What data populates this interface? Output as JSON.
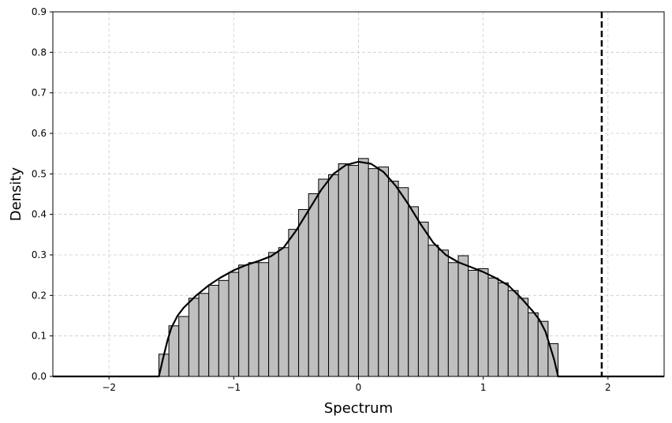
{
  "chart_data": {
    "type": "bar",
    "title": "",
    "xlabel": "Spectrum",
    "ylabel": "Density",
    "xlim": [
      -2.45,
      2.45
    ],
    "ylim": [
      0,
      0.9
    ],
    "xticks": [
      -2,
      -1,
      0,
      1,
      2
    ],
    "xtick_labels": [
      "−2",
      "−1",
      "0",
      "1",
      "2"
    ],
    "yticks": [
      0.0,
      0.1,
      0.2,
      0.3,
      0.4,
      0.5,
      0.6,
      0.7,
      0.8,
      0.9
    ],
    "ytick_labels": [
      "0.0",
      "0.1",
      "0.2",
      "0.3",
      "0.4",
      "0.5",
      "0.6",
      "0.7",
      "0.8",
      "0.9"
    ],
    "grid": true,
    "histogram": {
      "bin_start": -1.6,
      "bin_width": 0.08,
      "values": [
        0.055,
        0.125,
        0.148,
        0.193,
        0.205,
        0.225,
        0.237,
        0.257,
        0.275,
        0.281,
        0.281,
        0.306,
        0.318,
        0.363,
        0.412,
        0.451,
        0.487,
        0.498,
        0.525,
        0.521,
        0.538,
        0.513,
        0.517,
        0.482,
        0.466,
        0.419,
        0.381,
        0.324,
        0.312,
        0.281,
        0.298,
        0.262,
        0.266,
        0.243,
        0.231,
        0.212,
        0.193,
        0.157,
        0.136,
        0.081
      ],
      "fill": "#bfbfbf",
      "edge": "#000000"
    },
    "density_curve": {
      "x": [
        -2.45,
        -1.6,
        -1.57,
        -1.53,
        -1.5,
        -1.45,
        -1.4,
        -1.3,
        -1.2,
        -1.1,
        -1.0,
        -0.9,
        -0.8,
        -0.7,
        -0.6,
        -0.5,
        -0.4,
        -0.3,
        -0.2,
        -0.1,
        0.0,
        0.1,
        0.2,
        0.3,
        0.4,
        0.5,
        0.6,
        0.7,
        0.8,
        0.9,
        1.0,
        1.1,
        1.2,
        1.3,
        1.4,
        1.45,
        1.5,
        1.53,
        1.57,
        1.6,
        2.45
      ],
      "y": [
        0.0,
        0.0,
        0.04,
        0.09,
        0.12,
        0.15,
        0.17,
        0.2,
        0.225,
        0.245,
        0.262,
        0.275,
        0.285,
        0.297,
        0.318,
        0.36,
        0.41,
        0.46,
        0.5,
        0.522,
        0.53,
        0.525,
        0.505,
        0.47,
        0.425,
        0.375,
        0.33,
        0.3,
        0.282,
        0.27,
        0.258,
        0.243,
        0.225,
        0.195,
        0.16,
        0.14,
        0.11,
        0.08,
        0.04,
        0.0,
        0.0
      ],
      "color": "#000000"
    },
    "vertical_line": {
      "x": 1.95,
      "style": "dashed",
      "color": "#000000"
    }
  }
}
